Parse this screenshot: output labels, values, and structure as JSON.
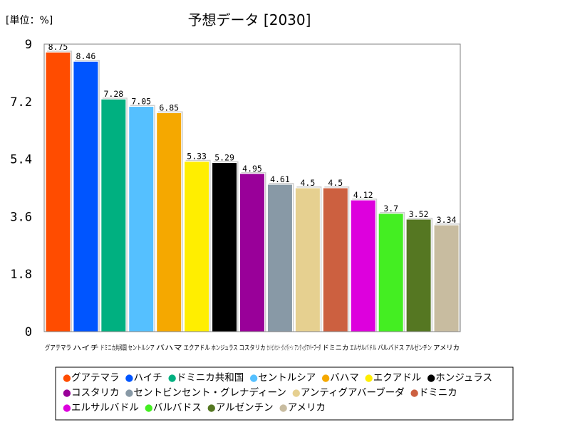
{
  "chart_data": {
    "type": "bar",
    "title": "予想データ [2030]",
    "unit_label": "[単位：%]",
    "ylim": [
      0,
      9
    ],
    "yticks": [
      "0",
      "1.8",
      "3.6",
      "5.4",
      "7.2",
      "9"
    ],
    "categories": [
      "グアテマラ",
      "ハイチ",
      "ドミニカ共和国",
      "セントルシア",
      "バハマ",
      "エクアドル",
      "ホンジュラス",
      "コスタリカ",
      "セントビンセント・グレナディーン",
      "アンティグアバーブーダ",
      "ドミニカ",
      "エルサルバドル",
      "バルバドス",
      "アルゼンチン",
      "アメリカ"
    ],
    "xtick_labels": [
      "グアテマラ",
      "ハイチ",
      "ドミニカ共和国",
      "セントルシア",
      "バハマ",
      "エクアドル",
      "ホンジュラス",
      "コスタリカ",
      "セントビンセント・グレナディーン",
      "アンティグアバーブーダ",
      "ドミニカ",
      "エルサルバドル",
      "バルバドス",
      "アルゼンチン",
      "アメリカ"
    ],
    "values": [
      8.75,
      8.46,
      7.28,
      7.05,
      6.85,
      5.33,
      5.29,
      4.95,
      4.61,
      4.5,
      4.5,
      4.12,
      3.7,
      3.52,
      3.34
    ],
    "value_labels": [
      "8.75",
      "8.46",
      "7.28",
      "7.05",
      "6.85",
      "5.33",
      "5.29",
      "4.95",
      "4.61",
      "4.5",
      "4.5",
      "4.12",
      "3.7",
      "3.52",
      "3.34"
    ],
    "colors": [
      "#ff4c00",
      "#0055ff",
      "#00b080",
      "#55c0ff",
      "#f5a800",
      "#ffee00",
      "#000000",
      "#990099",
      "#8899a6",
      "#e6d090",
      "#cc6040",
      "#dd00dd",
      "#44ee22",
      "#557722",
      "#c8bca0"
    ],
    "legend_marker": "●",
    "legend_placement": "bottom",
    "grid": false
  }
}
